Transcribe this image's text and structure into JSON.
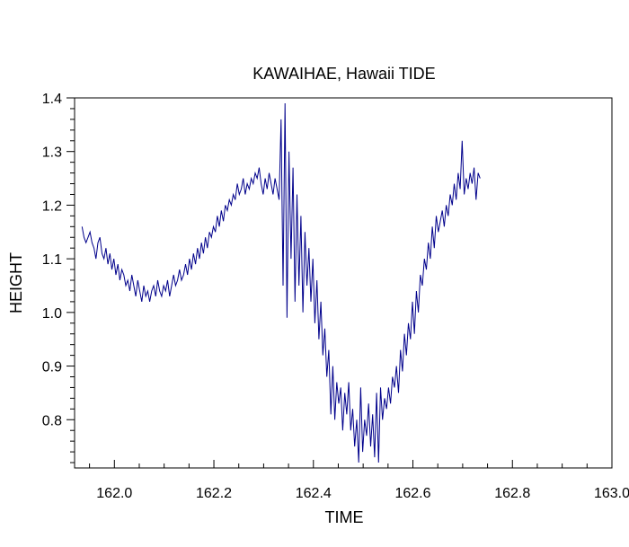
{
  "chart_data": {
    "type": "line",
    "title": "KAWAIHAE, Hawaii TIDE",
    "xlabel": "TIME",
    "ylabel": "HEIGHT",
    "xlim": [
      161.92,
      163.0
    ],
    "ylim": [
      0.71,
      1.4
    ],
    "x_ticks": [
      "162.0",
      "162.2",
      "162.4",
      "162.6",
      "162.8",
      "163.0"
    ],
    "y_ticks": [
      "0.8",
      "0.9",
      "1.0",
      "1.1",
      "1.2",
      "1.3",
      "1.4"
    ],
    "grid": false,
    "line_color": "#00008b",
    "series": [
      {
        "x_start": 161.935,
        "x_step": 0.004,
        "values": [
          1.16,
          1.14,
          1.13,
          1.14,
          1.15,
          1.13,
          1.12,
          1.1,
          1.13,
          1.14,
          1.11,
          1.1,
          1.12,
          1.09,
          1.11,
          1.08,
          1.1,
          1.07,
          1.09,
          1.06,
          1.08,
          1.07,
          1.05,
          1.06,
          1.04,
          1.07,
          1.05,
          1.03,
          1.06,
          1.04,
          1.02,
          1.05,
          1.03,
          1.04,
          1.02,
          1.04,
          1.05,
          1.03,
          1.06,
          1.04,
          1.03,
          1.05,
          1.04,
          1.06,
          1.03,
          1.05,
          1.07,
          1.05,
          1.06,
          1.08,
          1.06,
          1.07,
          1.09,
          1.07,
          1.1,
          1.08,
          1.11,
          1.09,
          1.12,
          1.1,
          1.13,
          1.11,
          1.14,
          1.12,
          1.15,
          1.14,
          1.16,
          1.15,
          1.18,
          1.16,
          1.19,
          1.17,
          1.2,
          1.19,
          1.21,
          1.2,
          1.22,
          1.21,
          1.24,
          1.22,
          1.23,
          1.25,
          1.22,
          1.24,
          1.23,
          1.25,
          1.24,
          1.26,
          1.25,
          1.27,
          1.24,
          1.22,
          1.25,
          1.23,
          1.26,
          1.24,
          1.22,
          1.25,
          1.23,
          1.21,
          1.36,
          1.05,
          1.39,
          0.99,
          1.3,
          1.1,
          1.27,
          1.02,
          1.22,
          1.05,
          1.18,
          1.0,
          1.15,
          1.05,
          1.12,
          1.02,
          1.1,
          0.98,
          1.06,
          0.95,
          1.02,
          0.92,
          0.97,
          0.88,
          0.93,
          0.81,
          0.9,
          0.8,
          0.87,
          0.83,
          0.86,
          0.78,
          0.85,
          0.81,
          0.87,
          0.78,
          0.82,
          0.75,
          0.8,
          0.72,
          0.86,
          0.74,
          0.8,
          0.77,
          0.83,
          0.75,
          0.81,
          0.73,
          0.85,
          0.72,
          0.86,
          0.8,
          0.84,
          0.82,
          0.86,
          0.83,
          0.88,
          0.86,
          0.9,
          0.85,
          0.93,
          0.89,
          0.96,
          0.92,
          0.98,
          0.95,
          1.02,
          0.96,
          1.04,
          1.0,
          1.07,
          1.05,
          1.1,
          1.08,
          1.13,
          1.1,
          1.16,
          1.12,
          1.18,
          1.15,
          1.17,
          1.19,
          1.16,
          1.2,
          1.18,
          1.22,
          1.2,
          1.24,
          1.21,
          1.26,
          1.23,
          1.32,
          1.22,
          1.25,
          1.23,
          1.26,
          1.24,
          1.27,
          1.21,
          1.26,
          1.25
        ]
      }
    ]
  }
}
